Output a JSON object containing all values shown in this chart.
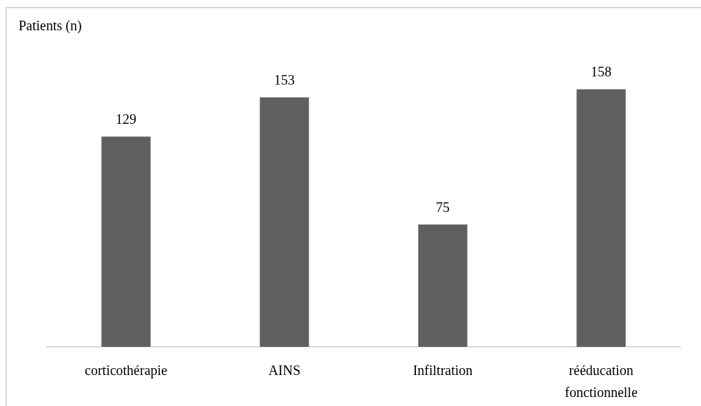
{
  "chart_data": {
    "type": "bar",
    "ylabel": "Patients (n)",
    "categories": [
      "corticothérapie",
      "AINS",
      "Infiltration",
      "rééducation fonctionnelle"
    ],
    "values": [
      129,
      153,
      75,
      158
    ],
    "color": "#5f5f5f",
    "data_labels": true,
    "tick_labels": "x"
  }
}
